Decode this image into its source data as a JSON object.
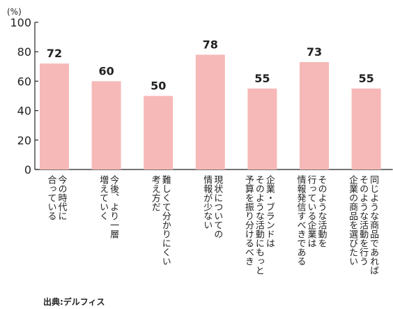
{
  "chart_data": {
    "type": "bar",
    "unit": "(%)",
    "ylim": [
      0,
      100
    ],
    "yticks": [
      0,
      20,
      40,
      60,
      80,
      100
    ],
    "grid": false,
    "bar_color": "#f6b9b7",
    "categories": [
      [
        "今の時代に",
        "合っている"
      ],
      [
        "今後、より一層",
        "増えていく"
      ],
      [
        "難しくて分かりにくい",
        "考え方だ"
      ],
      [
        "現状についての",
        "情報が少ない"
      ],
      [
        "企業・ブランドは",
        "そのような活動にもっと",
        "予算を振り分けるべき"
      ],
      [
        "そのような活動を",
        "行っている企業は",
        "情報発信すべきである"
      ],
      [
        "同じような商品であれば",
        "そのような活動を行う",
        "企業の商品を選びたい"
      ]
    ],
    "values": [
      72,
      60,
      50,
      78,
      55,
      73,
      55
    ]
  },
  "source": "出典:デルフィス"
}
